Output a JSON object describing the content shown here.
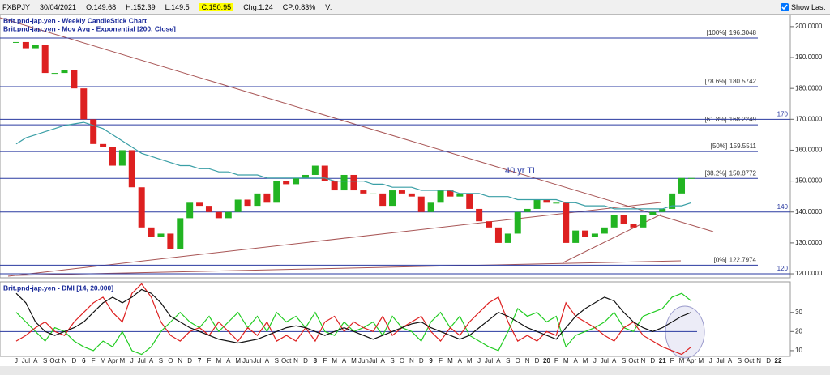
{
  "header": {
    "symbol": "FXBPJY",
    "date": "30/04/2021",
    "open": "O:149.68",
    "high": "H:152.39",
    "low": "L:149.5",
    "close": "C:150.95",
    "change": "Chg:1.24",
    "change_pct": "CP:0.83%",
    "volume": "V:",
    "show_last": "Show Last"
  },
  "chart_data": [
    {
      "type": "candlestick",
      "categories": [
        "J",
        "Jul",
        "A",
        "S",
        "Oct",
        "N",
        "D",
        "6",
        "F",
        "M",
        "Apr",
        "M",
        "J",
        "Jul",
        "A",
        "S",
        "O",
        "N",
        "D",
        "7",
        "F",
        "M",
        "A",
        "M",
        "Jun",
        "Jul",
        "A",
        "S",
        "Oct",
        "N",
        "D",
        "8",
        "F",
        "M",
        "A",
        "M",
        "Jun",
        "Jul",
        "A",
        "S",
        "O",
        "N",
        "D",
        "9",
        "F",
        "M",
        "A",
        "M",
        "J",
        "Jul",
        "A",
        "S",
        "O",
        "N",
        "D",
        "20",
        "F",
        "M",
        "A",
        "M",
        "J",
        "Jul",
        "A",
        "S",
        "Oct",
        "N",
        "D",
        "21",
        "F",
        "M",
        "Apr",
        "M",
        "J",
        "Jul",
        "A",
        "S",
        "Oct",
        "N",
        "D",
        "22"
      ],
      "series": [
        {
          "name": "Brit.pnd-jap.yen - Weekly CandleStick Chart",
          "up_color": "#22b422",
          "down_color": "#dd2020",
          "values": [
            195,
            193,
            194,
            185,
            185,
            186,
            180,
            170,
            162,
            161,
            155,
            160,
            148,
            135,
            132,
            133,
            128,
            138,
            143,
            142,
            140,
            138,
            140,
            144,
            142,
            146,
            143,
            150,
            149,
            151,
            152,
            155,
            150,
            147,
            152,
            147,
            146,
            146,
            142,
            147,
            146,
            145,
            140,
            143,
            147,
            145,
            146,
            141,
            137,
            135,
            130,
            133,
            140,
            141,
            144,
            143,
            143,
            130,
            134,
            132,
            133,
            135,
            139,
            136,
            135,
            139,
            140,
            141,
            146,
            151,
            151,
            null,
            null,
            null,
            null,
            null,
            null,
            null,
            null,
            null
          ]
        },
        {
          "name": "Brit.pnd-jap.yen - Mov Avg - Exponential [200, Close]",
          "color": "#3a9fa6",
          "values": [
            162,
            164,
            165,
            166,
            167,
            168,
            168.5,
            169,
            168,
            167,
            165,
            163,
            161,
            159,
            158,
            157,
            156,
            155,
            155,
            154,
            154,
            153,
            153,
            152,
            152,
            152,
            151,
            151,
            151,
            151,
            151,
            151,
            151,
            150,
            150,
            150,
            150,
            149,
            149,
            148,
            148,
            148,
            147,
            147,
            147,
            147,
            146,
            146,
            146,
            145,
            145,
            145,
            144,
            144,
            144,
            144,
            144,
            143,
            143,
            142,
            142,
            142,
            141,
            141,
            141,
            141,
            141,
            141,
            142,
            142,
            143,
            null,
            null,
            null,
            null,
            null,
            null,
            null,
            null,
            null
          ]
        }
      ],
      "fib_levels": [
        {
          "name": "[100%]",
          "value": 196.3048
        },
        {
          "name": "[78.6%]",
          "value": 180.5742
        },
        {
          "name": "[61.8%]",
          "value": 168.2249
        },
        {
          "name": "[50%]",
          "value": 159.5511
        },
        {
          "name": "[38.2%]",
          "value": 150.8772
        },
        {
          "name": "[0%]",
          "value": 122.7974
        }
      ],
      "hlines": [
        170,
        140,
        120
      ],
      "annotation": "40 yr TL",
      "ylim": [
        118.7,
        203.9
      ],
      "yticks": [
        {
          "value": 200,
          "label": "200.0000"
        },
        {
          "value": 190,
          "label": "190.0000"
        },
        {
          "value": 180,
          "label": "180.0000"
        },
        {
          "value": 170,
          "label": "170.0000"
        },
        {
          "value": 160,
          "label": "160.0000"
        },
        {
          "value": 150,
          "label": "150.0000"
        },
        {
          "value": 140,
          "label": "140.0000"
        },
        {
          "value": 130,
          "label": "130.0000"
        },
        {
          "value": 120,
          "label": "120.0000"
        }
      ]
    },
    {
      "type": "line",
      "title": "Brit.pnd-jap.yen - DMI [14, 20.000]",
      "series": [
        {
          "color": "#22cc22",
          "values": [
            30,
            25,
            20,
            15,
            22,
            20,
            15,
            12,
            10,
            15,
            12,
            20,
            10,
            8,
            12,
            20,
            25,
            30,
            25,
            22,
            28,
            20,
            25,
            30,
            22,
            28,
            20,
            30,
            25,
            28,
            22,
            30,
            20,
            18,
            25,
            20,
            22,
            25,
            18,
            28,
            22,
            20,
            15,
            25,
            30,
            22,
            28,
            18,
            15,
            12,
            10,
            20,
            32,
            28,
            30,
            25,
            28,
            12,
            18,
            20,
            22,
            25,
            30,
            22,
            20,
            28,
            30,
            32,
            38,
            40,
            36,
            null,
            null,
            null,
            null,
            null,
            null,
            null,
            null,
            null
          ]
        },
        {
          "color": "#dd2020",
          "values": [
            15,
            18,
            22,
            25,
            20,
            18,
            25,
            30,
            35,
            38,
            30,
            25,
            40,
            45,
            38,
            25,
            18,
            15,
            20,
            22,
            18,
            25,
            20,
            15,
            22,
            18,
            25,
            15,
            18,
            15,
            22,
            15,
            25,
            28,
            20,
            25,
            22,
            20,
            28,
            18,
            22,
            25,
            28,
            20,
            15,
            22,
            18,
            25,
            30,
            35,
            38,
            25,
            15,
            18,
            15,
            20,
            18,
            35,
            28,
            25,
            22,
            18,
            15,
            22,
            25,
            18,
            15,
            12,
            10,
            8,
            12,
            null,
            null,
            null,
            null,
            null,
            null,
            null,
            null,
            null
          ]
        },
        {
          "color": "#111111",
          "values": [
            40,
            35,
            25,
            20,
            18,
            20,
            22,
            25,
            30,
            35,
            38,
            35,
            38,
            42,
            40,
            35,
            28,
            25,
            22,
            20,
            18,
            16,
            15,
            14,
            15,
            16,
            18,
            20,
            22,
            23,
            22,
            20,
            18,
            20,
            22,
            20,
            18,
            16,
            18,
            20,
            22,
            24,
            25,
            22,
            20,
            18,
            16,
            18,
            22,
            26,
            30,
            28,
            25,
            22,
            20,
            18,
            16,
            22,
            28,
            32,
            35,
            38,
            36,
            30,
            25,
            22,
            20,
            22,
            25,
            28,
            30,
            null,
            null,
            null,
            null,
            null,
            null,
            null,
            null,
            null
          ]
        }
      ],
      "hlines": [
        20
      ],
      "ylim": [
        7,
        46
      ],
      "yticks": [
        10,
        20,
        30
      ]
    }
  ]
}
